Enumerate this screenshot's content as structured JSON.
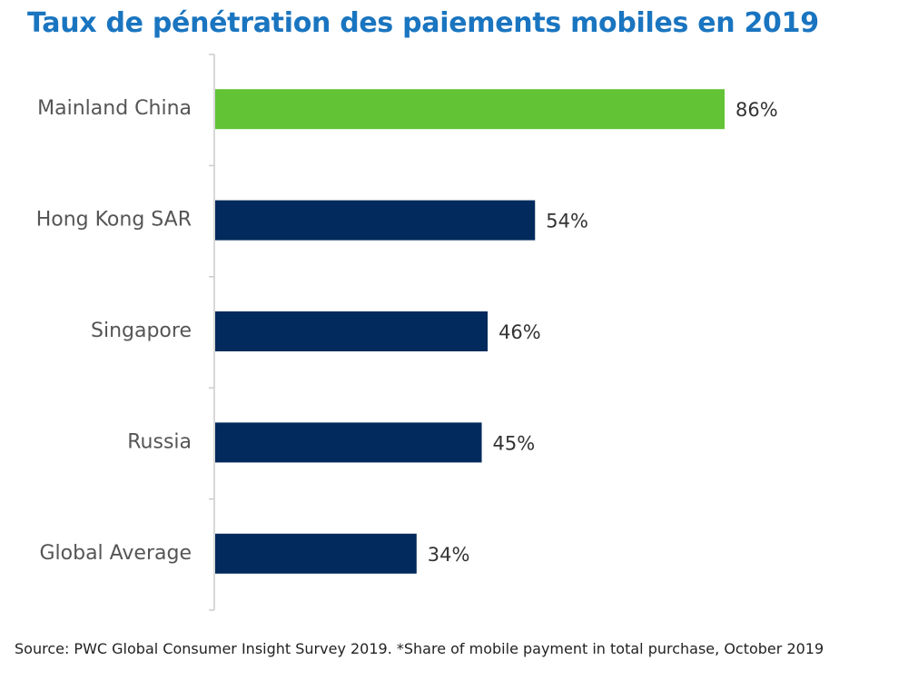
{
  "title": "Taux de pénétration des paiements mobiles en 2019",
  "source": "Source: PWC Global Consumer Insight Survey 2019. *Share of mobile payment in total purchase, October 2019",
  "colors": {
    "title": "#1a75c0",
    "highlight": "#62c334",
    "bar": "#032a5c",
    "axis": "#cccccc"
  },
  "chart_data": {
    "type": "bar",
    "orientation": "horizontal",
    "title": "Taux de pénétration des paiements mobiles en 2019",
    "categories": [
      "Mainland China",
      "Hong Kong SAR",
      "Singapore",
      "Russia",
      "Global Average"
    ],
    "values": [
      86,
      54,
      46,
      45,
      34
    ],
    "value_labels": [
      "86%",
      "54%",
      "46%",
      "45%",
      "34%"
    ],
    "highlight_index": 0,
    "xlim": [
      0,
      100
    ],
    "grid": false,
    "legend": "none"
  }
}
